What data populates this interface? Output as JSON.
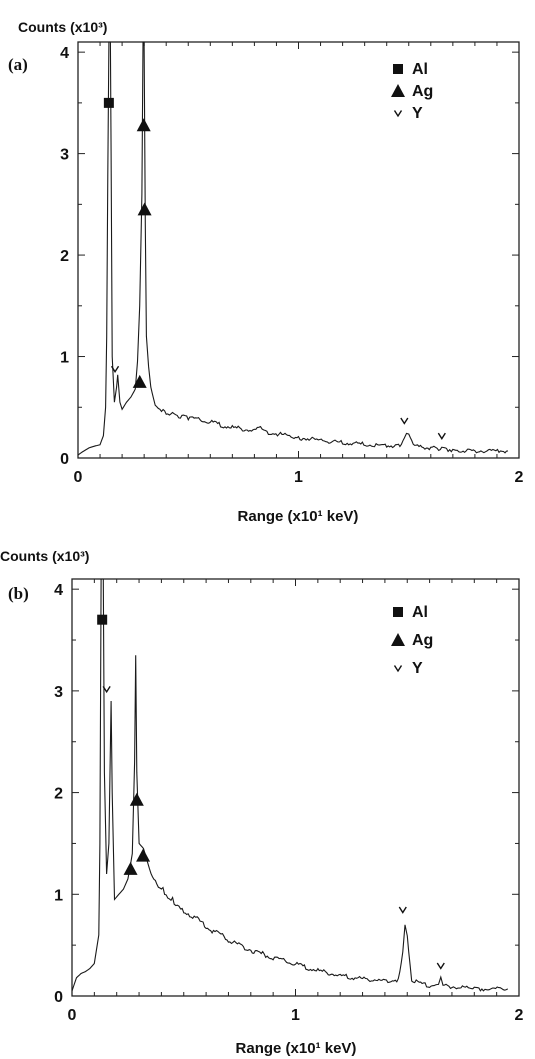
{
  "chart_data": [
    {
      "type": "line",
      "panel_label": "(a)",
      "ylabel": "Counts (x10³)",
      "xlabel": "Range (x10¹ keV)",
      "xlim": [
        0,
        2
      ],
      "ylim": [
        0,
        4.1
      ],
      "xticks": [
        "0",
        "1",
        "2"
      ],
      "yticks": [
        "0",
        "1",
        "2",
        "3",
        "4"
      ],
      "legend": {
        "position": "top-right",
        "entries": [
          {
            "marker": "square",
            "label": "Al"
          },
          {
            "marker": "triangle",
            "label": "Ag"
          },
          {
            "marker": "small-triangle-down",
            "label": "Y"
          }
        ]
      },
      "series": [
        {
          "points": [
            [
              0.0,
              0.03
            ],
            [
              0.02,
              0.06
            ],
            [
              0.05,
              0.1
            ],
            [
              0.08,
              0.12
            ],
            [
              0.1,
              0.13
            ],
            [
              0.115,
              0.22
            ],
            [
              0.125,
              0.5
            ],
            [
              0.13,
              1.2
            ],
            [
              0.135,
              2.8
            ],
            [
              0.14,
              4.1
            ],
            [
              0.147,
              4.1
            ],
            [
              0.15,
              3.0
            ],
            [
              0.155,
              1.0
            ],
            [
              0.165,
              0.55
            ],
            [
              0.175,
              0.7
            ],
            [
              0.18,
              0.82
            ],
            [
              0.19,
              0.55
            ],
            [
              0.2,
              0.48
            ],
            [
              0.22,
              0.55
            ],
            [
              0.24,
              0.6
            ],
            [
              0.26,
              0.68
            ],
            [
              0.27,
              0.95
            ],
            [
              0.28,
              1.5
            ],
            [
              0.29,
              2.6
            ],
            [
              0.295,
              4.1
            ],
            [
              0.3,
              4.1
            ],
            [
              0.305,
              2.3
            ],
            [
              0.31,
              1.2
            ],
            [
              0.32,
              0.9
            ],
            [
              0.33,
              0.7
            ],
            [
              0.35,
              0.52
            ],
            [
              0.4,
              0.45
            ],
            [
              0.45,
              0.42
            ],
            [
              0.5,
              0.4
            ],
            [
              0.6,
              0.35
            ],
            [
              0.7,
              0.3
            ],
            [
              0.8,
              0.27
            ],
            [
              0.82,
              0.3
            ],
            [
              0.85,
              0.26
            ],
            [
              1.0,
              0.2
            ],
            [
              1.2,
              0.15
            ],
            [
              1.4,
              0.12
            ],
            [
              1.46,
              0.12
            ],
            [
              1.48,
              0.2
            ],
            [
              1.49,
              0.26
            ],
            [
              1.5,
              0.22
            ],
            [
              1.52,
              0.12
            ],
            [
              1.6,
              0.1
            ],
            [
              1.65,
              0.09
            ],
            [
              1.7,
              0.08
            ],
            [
              1.8,
              0.07
            ],
            [
              1.95,
              0.07
            ]
          ]
        }
      ],
      "markers": [
        {
          "element": "Al",
          "x": 0.14,
          "y": 3.5
        },
        {
          "element": "Ag",
          "x": 0.298,
          "y": 3.28
        },
        {
          "element": "Ag",
          "x": 0.302,
          "y": 2.45
        },
        {
          "element": "Ag",
          "x": 0.28,
          "y": 0.75
        },
        {
          "element": "Y",
          "x": 0.168,
          "y": 0.88
        },
        {
          "element": "Y",
          "x": 1.48,
          "y": 0.37
        },
        {
          "element": "Y",
          "x": 1.65,
          "y": 0.22
        }
      ]
    },
    {
      "type": "line",
      "panel_label": "(b)",
      "ylabel": "Counts (x10³)",
      "xlabel": "Range (x10¹ keV)",
      "xlim": [
        0,
        2
      ],
      "ylim": [
        0,
        4.1
      ],
      "xticks": [
        "0",
        "1",
        "2"
      ],
      "yticks": [
        "0",
        "1",
        "2",
        "3",
        "4"
      ],
      "legend": {
        "position": "top-right",
        "entries": [
          {
            "marker": "square",
            "label": "Al"
          },
          {
            "marker": "triangle",
            "label": "Ag"
          },
          {
            "marker": "small-triangle-down",
            "label": "Y"
          }
        ]
      },
      "series": [
        {
          "points": [
            [
              0.0,
              0.05
            ],
            [
              0.02,
              0.18
            ],
            [
              0.04,
              0.22
            ],
            [
              0.06,
              0.24
            ],
            [
              0.08,
              0.27
            ],
            [
              0.1,
              0.32
            ],
            [
              0.12,
              0.6
            ],
            [
              0.125,
              1.5
            ],
            [
              0.13,
              4.1
            ],
            [
              0.14,
              4.1
            ],
            [
              0.145,
              2.2
            ],
            [
              0.155,
              1.2
            ],
            [
              0.165,
              1.5
            ],
            [
              0.175,
              2.9
            ],
            [
              0.18,
              2.0
            ],
            [
              0.19,
              0.95
            ],
            [
              0.21,
              1.0
            ],
            [
              0.23,
              1.05
            ],
            [
              0.25,
              1.15
            ],
            [
              0.27,
              1.4
            ],
            [
              0.28,
              2.3
            ],
            [
              0.285,
              3.35
            ],
            [
              0.29,
              2.2
            ],
            [
              0.3,
              1.5
            ],
            [
              0.32,
              1.45
            ],
            [
              0.34,
              1.3
            ],
            [
              0.36,
              1.15
            ],
            [
              0.4,
              1.05
            ],
            [
              0.45,
              0.95
            ],
            [
              0.5,
              0.85
            ],
            [
              0.6,
              0.68
            ],
            [
              0.7,
              0.55
            ],
            [
              0.8,
              0.45
            ],
            [
              0.9,
              0.38
            ],
            [
              1.0,
              0.31
            ],
            [
              1.1,
              0.25
            ],
            [
              1.2,
              0.2
            ],
            [
              1.3,
              0.17
            ],
            [
              1.4,
              0.15
            ],
            [
              1.46,
              0.16
            ],
            [
              1.48,
              0.45
            ],
            [
              1.49,
              0.72
            ],
            [
              1.5,
              0.6
            ],
            [
              1.52,
              0.15
            ],
            [
              1.6,
              0.1
            ],
            [
              1.64,
              0.1
            ],
            [
              1.65,
              0.17
            ],
            [
              1.66,
              0.1
            ],
            [
              1.8,
              0.07
            ],
            [
              1.95,
              0.07
            ]
          ]
        }
      ],
      "markers": [
        {
          "element": "Al",
          "x": 0.135,
          "y": 3.7
        },
        {
          "element": "Ag",
          "x": 0.29,
          "y": 1.93
        },
        {
          "element": "Ag",
          "x": 0.318,
          "y": 1.38
        },
        {
          "element": "Ag",
          "x": 0.262,
          "y": 1.25
        },
        {
          "element": "Y",
          "x": 0.155,
          "y": 3.02
        },
        {
          "element": "Y",
          "x": 1.48,
          "y": 0.85
        },
        {
          "element": "Y",
          "x": 1.65,
          "y": 0.3
        }
      ]
    }
  ]
}
